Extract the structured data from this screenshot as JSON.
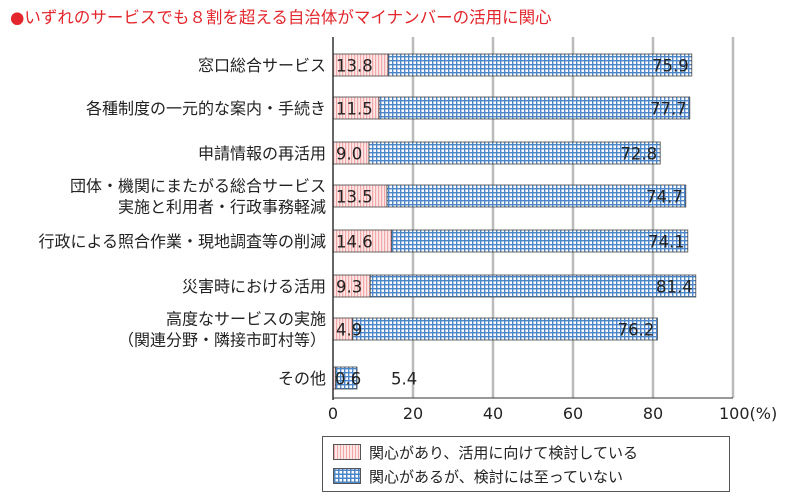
{
  "title": "●いずれのサービスでも８割を超える自治体がマイナンバーの活用に関心",
  "colors": {
    "title": "#e3262b",
    "series_red": "#f2a8a8",
    "series_blue": "#4d86c8",
    "grid": "#bbbbbb"
  },
  "legend": {
    "items": [
      "関心があり、活用に向けて検討している",
      "関心があるが、検討には至っていない"
    ]
  },
  "chart_data": {
    "type": "bar",
    "orientation": "horizontal",
    "stacked": true,
    "categories": [
      [
        "窓口総合サービス"
      ],
      [
        "各種制度の一元的な案内・手続き"
      ],
      [
        "申請情報の再活用"
      ],
      [
        "団体・機関にまたがる総合サービス",
        "実施と利用者・行政事務軽減"
      ],
      [
        "行政による照合作業・現地調査等の削減"
      ],
      [
        "災害時における活用"
      ],
      [
        "高度なサービスの実施",
        "（関連分野・隣接市町村等）"
      ],
      [
        "その他"
      ]
    ],
    "series": [
      {
        "name": "関心があり、活用に向けて検討している",
        "values": [
          13.8,
          11.5,
          9.0,
          13.5,
          14.6,
          9.3,
          4.9,
          0.6
        ],
        "labels": [
          "13.8",
          "11.5",
          "9.0",
          "13.5",
          "14.6",
          "9.3",
          "4.9",
          "0.6"
        ]
      },
      {
        "name": "関心があるが、検討には至っていない",
        "values": [
          75.9,
          77.7,
          72.8,
          74.7,
          74.1,
          81.4,
          76.2,
          5.4
        ],
        "labels": [
          "75.9",
          "77.7",
          "72.8",
          "74.7",
          "74.1",
          "81.4",
          "76.2",
          "5.4"
        ]
      }
    ],
    "xlim": [
      0,
      100
    ],
    "xticks": [
      0,
      20,
      40,
      60,
      80,
      100
    ],
    "xtick_labels": [
      "0",
      "20",
      "40",
      "60",
      "80",
      "100(%)"
    ],
    "grid": true,
    "legend_position": "bottom-right"
  }
}
